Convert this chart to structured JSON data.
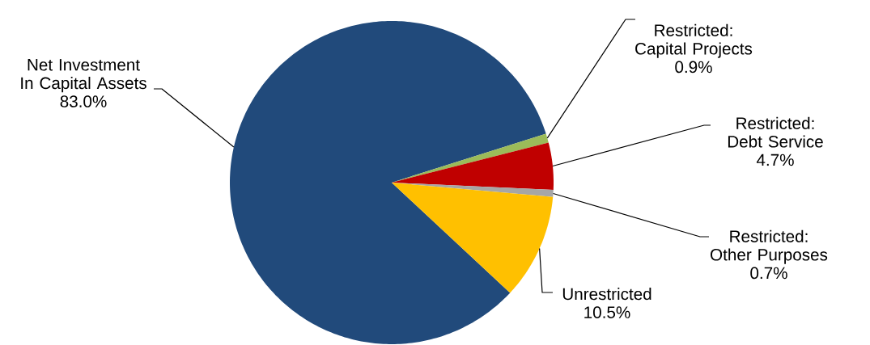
{
  "chart_data": {
    "type": "pie",
    "categories": [
      "Net Investment In Capital Assets",
      "Restricted: Capital Projects",
      "Restricted: Debt Service",
      "Restricted: Other Purposes",
      "Unrestricted"
    ],
    "values": [
      83.0,
      0.9,
      4.7,
      0.7,
      10.5
    ],
    "colors": [
      "#214a7b",
      "#9bbb59",
      "#c00000",
      "#a6a6a6",
      "#ffc000"
    ],
    "value_labels": [
      "83.0%",
      "0.9%",
      "4.7%",
      "0.7%",
      "10.5%"
    ]
  }
}
